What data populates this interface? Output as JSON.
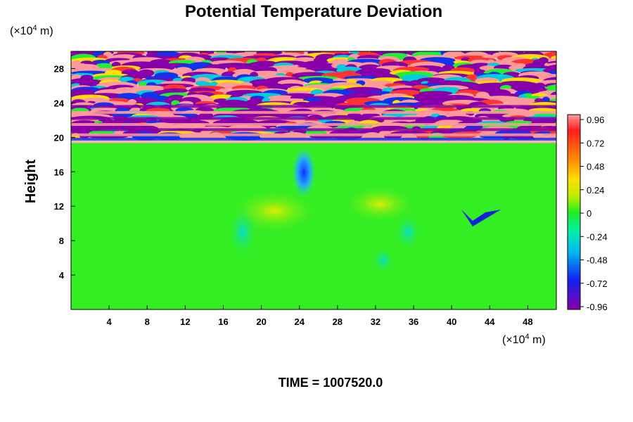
{
  "chart_data": {
    "type": "heatmap",
    "title": "Potential Temperature Deviation",
    "ylabel": "Height",
    "x_unit_base": "(×10",
    "x_unit_exp": "4",
    "x_unit_tail": " m)",
    "y_unit_base": "(×10",
    "y_unit_exp": "4",
    "y_unit_tail": " m)",
    "x_ticks": [
      4,
      8,
      12,
      16,
      20,
      24,
      28,
      32,
      36,
      40,
      44,
      48
    ],
    "y_ticks": [
      4,
      8,
      12,
      16,
      20,
      24,
      28
    ],
    "xlim": [
      0,
      51
    ],
    "ylim": [
      0,
      30
    ],
    "colorbar": {
      "labels": [
        "0.96",
        "0.72",
        "0.48",
        "0.24",
        "0",
        "-0.24",
        "-0.48",
        "-0.72",
        "-0.96"
      ],
      "range": [
        -0.96,
        0.96
      ]
    },
    "time_label": "TIME = 1007520.0",
    "colors": {
      "background_field": "#33ee22",
      "max": "#ff9a9a",
      "min": "#8800aa"
    }
  }
}
